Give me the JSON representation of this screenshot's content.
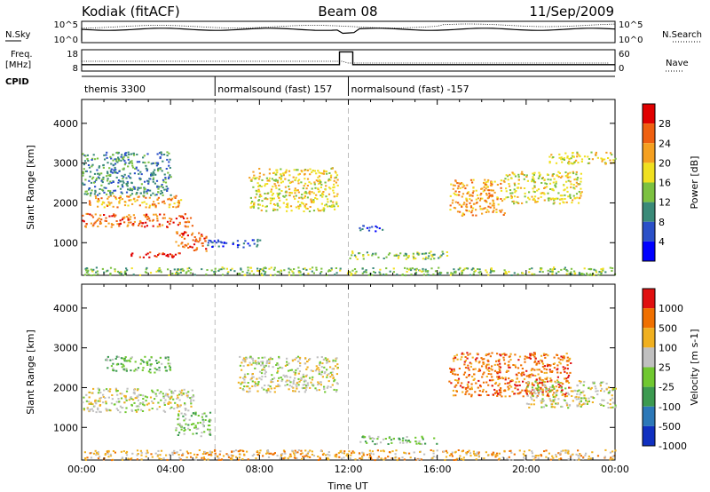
{
  "header": {
    "station": "Kodiak (fitACF)",
    "beam": "Beam 08",
    "date": "11/Sep/2009"
  },
  "top_panel": {
    "nsky_label": "N.Sky",
    "nsky_ticks": [
      "10^5",
      "10^0"
    ],
    "nsearch_label": "N.Search",
    "nsearch_ticks": [
      "10^5",
      "10^0"
    ],
    "freq_label_line1": "Freq.",
    "freq_label_line2": "[MHz]",
    "freq_ticks": [
      "18",
      "8"
    ],
    "nave_label": "Nave",
    "nave_ticks": [
      "60",
      "0"
    ],
    "cpid_label": "CPID",
    "cpid_segments": [
      {
        "label": "themis 3300",
        "start_h": 0,
        "end_h": 6
      },
      {
        "label": "normalsound (fast) 157",
        "start_h": 6,
        "end_h": 12
      },
      {
        "label": "normalsound (fast) -157",
        "start_h": 12,
        "end_h": 24
      }
    ],
    "freq_series": {
      "x_h": [
        0,
        11.6,
        11.6,
        12.2,
        12.2,
        24
      ],
      "y_mhz": [
        11,
        11,
        17,
        17,
        11,
        11
      ]
    }
  },
  "chart_data": [
    {
      "type": "heatmap",
      "quantity": "Power",
      "ylabel": "Slant Range [km]",
      "xlabel": "",
      "ylim": [
        180,
        4600
      ],
      "xlim": [
        0,
        24
      ],
      "yticks": [
        "1000",
        "2000",
        "3000",
        "4000"
      ],
      "colorbar": {
        "label": "Power [dB]",
        "ticks": [
          "4",
          "8",
          "12",
          "16",
          "20",
          "24",
          "28"
        ],
        "colors": [
          "#0000ff",
          "#2b50c8",
          "#3a8a78",
          "#7cc140",
          "#f0e020",
          "#f5a020",
          "#ef6010",
          "#e00000"
        ]
      },
      "regions": [
        {
          "t0": 0.0,
          "t1": 5.0,
          "r0": 1400,
          "r1": 1750,
          "level": 6
        },
        {
          "t0": 0.3,
          "t1": 4.5,
          "r0": 1900,
          "r1": 2200,
          "level": 5
        },
        {
          "t0": 0.0,
          "t1": 4.0,
          "r0": 2200,
          "r1": 3300,
          "level": 2
        },
        {
          "t0": 2.0,
          "t1": 4.6,
          "r0": 650,
          "r1": 780,
          "level": 7
        },
        {
          "t0": 4.2,
          "t1": 5.6,
          "r0": 800,
          "r1": 1300,
          "level": 6
        },
        {
          "t0": 5.6,
          "t1": 8.0,
          "r0": 900,
          "r1": 1100,
          "level": 1
        },
        {
          "t0": 7.5,
          "t1": 11.5,
          "r0": 1800,
          "r1": 2900,
          "level": 4
        },
        {
          "t0": 12.3,
          "t1": 13.5,
          "r0": 1300,
          "r1": 1450,
          "level": 1
        },
        {
          "t0": 12.0,
          "t1": 16.5,
          "r0": 600,
          "r1": 800,
          "level": 3
        },
        {
          "t0": 16.5,
          "t1": 19.0,
          "r0": 1700,
          "r1": 2600,
          "level": 5
        },
        {
          "t0": 19.0,
          "t1": 22.5,
          "r0": 2000,
          "r1": 2800,
          "level": 4
        },
        {
          "t0": 21.0,
          "t1": 24.0,
          "r0": 3000,
          "r1": 3300,
          "level": 4
        },
        {
          "t0": 0.0,
          "t1": 24.0,
          "r0": 200,
          "r1": 400,
          "level": 3
        }
      ]
    },
    {
      "type": "heatmap",
      "quantity": "Velocity",
      "ylabel": "Slant Range [km]",
      "xlabel": "Time UT",
      "ylim": [
        180,
        4600
      ],
      "xlim": [
        0,
        24
      ],
      "yticks": [
        "1000",
        "2000",
        "3000",
        "4000"
      ],
      "xticks": [
        "00:00",
        "04:00",
        "08:00",
        "12:00",
        "16:00",
        "20:00",
        "00:00"
      ],
      "colorbar": {
        "label": "Velocity [m s-1]",
        "ticks": [
          "1000",
          "500",
          "100",
          "25",
          "-25",
          "-100",
          "-500",
          "-1000"
        ],
        "colors": [
          "#1030c0",
          "#2c78b8",
          "#3c9a50",
          "#70c830",
          "#c0c0c0",
          "#f0b020",
          "#f07000",
          "#e01010"
        ]
      },
      "regions": [
        {
          "t0": 0.0,
          "t1": 5.0,
          "r0": 1400,
          "r1": 2000,
          "level": 4
        },
        {
          "t0": 1.0,
          "t1": 4.0,
          "r0": 2400,
          "r1": 2800,
          "level": 3
        },
        {
          "t0": 4.2,
          "t1": 5.8,
          "r0": 800,
          "r1": 1400,
          "level": 3
        },
        {
          "t0": 7.0,
          "t1": 11.5,
          "r0": 1900,
          "r1": 2800,
          "level": 4
        },
        {
          "t0": 12.5,
          "t1": 16.0,
          "r0": 600,
          "r1": 800,
          "level": 3
        },
        {
          "t0": 16.5,
          "t1": 22.0,
          "r0": 1800,
          "r1": 2900,
          "level": 6
        },
        {
          "t0": 20.0,
          "t1": 24.0,
          "r0": 1500,
          "r1": 2200,
          "level": 4
        },
        {
          "t0": 0.0,
          "t1": 24.0,
          "r0": 200,
          "r1": 450,
          "level": 5
        }
      ]
    }
  ]
}
